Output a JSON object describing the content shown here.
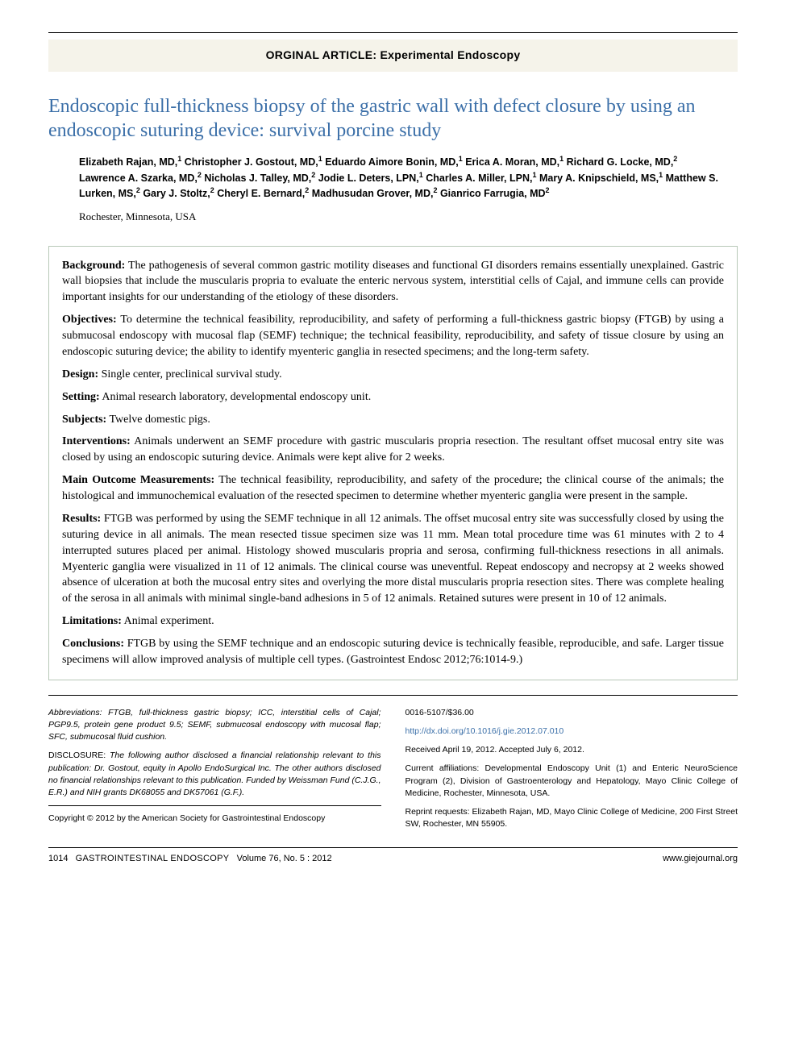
{
  "category_banner": "ORGINAL ARTICLE: Experimental Endoscopy",
  "title": "Endoscopic full-thickness biopsy of the gastric wall with defect closure by using an endoscopic suturing device: survival porcine study",
  "authors_html": "Elizabeth Rajan, MD,<sup class='affil-sup'>1</sup> Christopher J. Gostout, MD,<sup class='affil-sup'>1</sup> Eduardo Aimore Bonin, MD,<sup class='affil-sup'>1</sup> Erica A. Moran, MD,<sup class='affil-sup'>1</sup> Richard G. Locke, MD,<sup class='affil-sup'>2</sup> Lawrence A. Szarka, MD,<sup class='affil-sup'>2</sup> Nicholas J. Talley, MD,<sup class='affil-sup'>2</sup> Jodie L. Deters, LPN,<sup class='affil-sup'>1</sup> Charles A. Miller, LPN,<sup class='affil-sup'>1</sup> Mary A. Knipschield, MS,<sup class='affil-sup'>1</sup> Matthew S. Lurken, MS,<sup class='affil-sup'>2</sup> Gary J. Stoltz,<sup class='affil-sup'>2</sup> Cheryl E. Bernard,<sup class='affil-sup'>2</sup> Madhusudan Grover, MD,<sup class='affil-sup'>2</sup> Gianrico Farrugia, MD<sup class='affil-sup'>2</sup>",
  "location": "Rochester, Minnesota, USA",
  "abstract": {
    "background": {
      "label": "Background:",
      "text": " The pathogenesis of several common gastric motility diseases and functional GI disorders remains essentially unexplained. Gastric wall biopsies that include the muscularis propria to evaluate the enteric nervous system, interstitial cells of Cajal, and immune cells can provide important insights for our understanding of the etiology of these disorders."
    },
    "objectives": {
      "label": "Objectives:",
      "text": " To determine the technical feasibility, reproducibility, and safety of performing a full-thickness gastric biopsy (FTGB) by using a submucosal endoscopy with mucosal flap (SEMF) technique; the technical feasibility, reproducibility, and safety of tissue closure by using an endoscopic suturing device; the ability to identify myenteric ganglia in resected specimens; and the long-term safety."
    },
    "design": {
      "label": "Design:",
      "text": " Single center, preclinical survival study."
    },
    "setting": {
      "label": "Setting:",
      "text": " Animal research laboratory, developmental endoscopy unit."
    },
    "subjects": {
      "label": "Subjects:",
      "text": " Twelve domestic pigs."
    },
    "interventions": {
      "label": "Interventions:",
      "text": " Animals underwent an SEMF procedure with gastric muscularis propria resection. The resultant offset mucosal entry site was closed by using an endoscopic suturing device. Animals were kept alive for 2 weeks."
    },
    "outcomes": {
      "label": "Main Outcome Measurements:",
      "text": " The technical feasibility, reproducibility, and safety of the procedure; the clinical course of the animals; the histological and immunochemical evaluation of the resected specimen to determine whether myenteric ganglia were present in the sample."
    },
    "results": {
      "label": "Results:",
      "text": " FTGB was performed by using the SEMF technique in all 12 animals. The offset mucosal entry site was successfully closed by using the suturing device in all animals. The mean resected tissue specimen size was 11 mm. Mean total procedure time was 61 minutes with 2 to 4 interrupted sutures placed per animal. Histology showed muscularis propria and serosa, confirming full-thickness resections in all animals. Myenteric ganglia were visualized in 11 of 12 animals. The clinical course was uneventful. Repeat endoscopy and necropsy at 2 weeks showed absence of ulceration at both the mucosal entry sites and overlying the more distal muscularis propria resection sites. There was complete healing of the serosa in all animals with minimal single-band adhesions in 5 of 12 animals. Retained sutures were present in 10 of 12 animals."
    },
    "limitations": {
      "label": "Limitations:",
      "text": " Animal experiment."
    },
    "conclusions": {
      "label": "Conclusions:",
      "text": " FTGB by using the SEMF technique and an endoscopic suturing device is technically feasible, reproducible, and safe. Larger tissue specimens will allow improved analysis of multiple cell types. (Gastrointest Endosc 2012;76:1014-9.)"
    }
  },
  "footer": {
    "abbreviations": "Abbreviations: FTGB, full-thickness gastric biopsy; ICC, interstitial cells of Cajal; PGP9.5, protein gene product 9.5; SEMF, submucosal endoscopy with mucosal flap; SFC, submucosal fluid cushion.",
    "disclosure": "DISCLOSURE: The following author disclosed a financial relationship relevant to this publication: Dr. Gostout, equity in Apollo EndoSurgical Inc. The other authors disclosed no financial relationships relevant to this publication. Funded by Weissman Fund (C.J.G., E.R.) and NIH grants DK68055 and DK57061 (G.F.).",
    "copyright": "Copyright © 2012 by the American Society for Gastrointestinal Endoscopy",
    "issn_price": "0016-5107/$36.00",
    "doi": "http://dx.doi.org/10.1016/j.gie.2012.07.010",
    "received": "Received April 19, 2012. Accepted July 6, 2012.",
    "affiliations": "Current affiliations: Developmental Endoscopy Unit (1) and Enteric NeuroScience Program (2), Division of Gastroenterology and Hepatology, Mayo Clinic College of Medicine, Rochester, Minnesota, USA.",
    "reprints": "Reprint requests: Elizabeth Rajan, MD, Mayo Clinic College of Medicine, 200 First Street SW, Rochester, MN 55905."
  },
  "page_footer": {
    "page_number": "1014",
    "journal": "GASTROINTESTINAL ENDOSCOPY",
    "volume_issue": "Volume 76, No. 5 : 2012",
    "url": "www.giejournal.org"
  },
  "colors": {
    "title_color": "#3b6fa8",
    "banner_bg": "#f5f3ea",
    "box_border": "#b8c8b8",
    "link_color": "#3b6fa8"
  }
}
